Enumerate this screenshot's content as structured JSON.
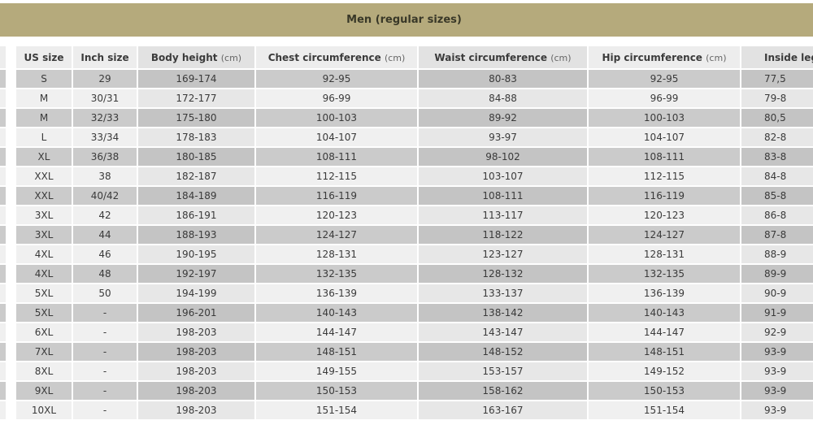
{
  "banner": {
    "title": "Men (regular sizes)",
    "background": "#b5aa7c",
    "text_color": "#393828"
  },
  "colors": {
    "row_dark": "#cbcbcb",
    "row_light": "#f0f0f0",
    "header_bg": "#ededed",
    "page_bg": "#ffffff"
  },
  "header": {
    "cols": [
      {
        "label": "US size",
        "unit": ""
      },
      {
        "label": "Inch size",
        "unit": ""
      },
      {
        "label": "Body height",
        "unit": "(cm)"
      },
      {
        "label": "Chest circumference",
        "unit": "(cm)"
      },
      {
        "label": "Waist circumference",
        "unit": "(cm)"
      },
      {
        "label": "Hip circumference",
        "unit": "(cm)"
      },
      {
        "label": "Inside leg l",
        "unit": ""
      }
    ]
  },
  "chart_data": {
    "type": "table",
    "title": "Men (regular sizes)",
    "columns": [
      "US size",
      "Inch size",
      "Body height (cm)",
      "Chest circumference (cm)",
      "Waist circumference (cm)",
      "Hip circumference (cm)",
      "Inside leg l"
    ],
    "last_column_clipped": true,
    "rows": [
      [
        "S",
        "29",
        "169-174",
        "92-95",
        "80-83",
        "92-95",
        "77,5"
      ],
      [
        "M",
        "30/31",
        "172-177",
        "96-99",
        "84-88",
        "96-99",
        "79-8"
      ],
      [
        "M",
        "32/33",
        "175-180",
        "100-103",
        "89-92",
        "100-103",
        "80,5"
      ],
      [
        "L",
        "33/34",
        "178-183",
        "104-107",
        "93-97",
        "104-107",
        "82-8"
      ],
      [
        "XL",
        "36/38",
        "180-185",
        "108-111",
        "98-102",
        "108-111",
        "83-8"
      ],
      [
        "XXL",
        "38",
        "182-187",
        "112-115",
        "103-107",
        "112-115",
        "84-8"
      ],
      [
        "XXL",
        "40/42",
        "184-189",
        "116-119",
        "108-111",
        "116-119",
        "85-8"
      ],
      [
        "3XL",
        "42",
        "186-191",
        "120-123",
        "113-117",
        "120-123",
        "86-8"
      ],
      [
        "3XL",
        "44",
        "188-193",
        "124-127",
        "118-122",
        "124-127",
        "87-8"
      ],
      [
        "4XL",
        "46",
        "190-195",
        "128-131",
        "123-127",
        "128-131",
        "88-9"
      ],
      [
        "4XL",
        "48",
        "192-197",
        "132-135",
        "128-132",
        "132-135",
        "89-9"
      ],
      [
        "5XL",
        "50",
        "194-199",
        "136-139",
        "133-137",
        "136-139",
        "90-9"
      ],
      [
        "5XL",
        "-",
        "196-201",
        "140-143",
        "138-142",
        "140-143",
        "91-9"
      ],
      [
        "6XL",
        "-",
        "198-203",
        "144-147",
        "143-147",
        "144-147",
        "92-9"
      ],
      [
        "7XL",
        "-",
        "198-203",
        "148-151",
        "148-152",
        "148-151",
        "93-9"
      ],
      [
        "8XL",
        "-",
        "198-203",
        "149-155",
        "153-157",
        "149-152",
        "93-9"
      ],
      [
        "9XL",
        "-",
        "198-203",
        "150-153",
        "158-162",
        "150-153",
        "93-9"
      ],
      [
        "10XL",
        "-",
        "198-203",
        "151-154",
        "163-167",
        "151-154",
        "93-9"
      ]
    ]
  }
}
